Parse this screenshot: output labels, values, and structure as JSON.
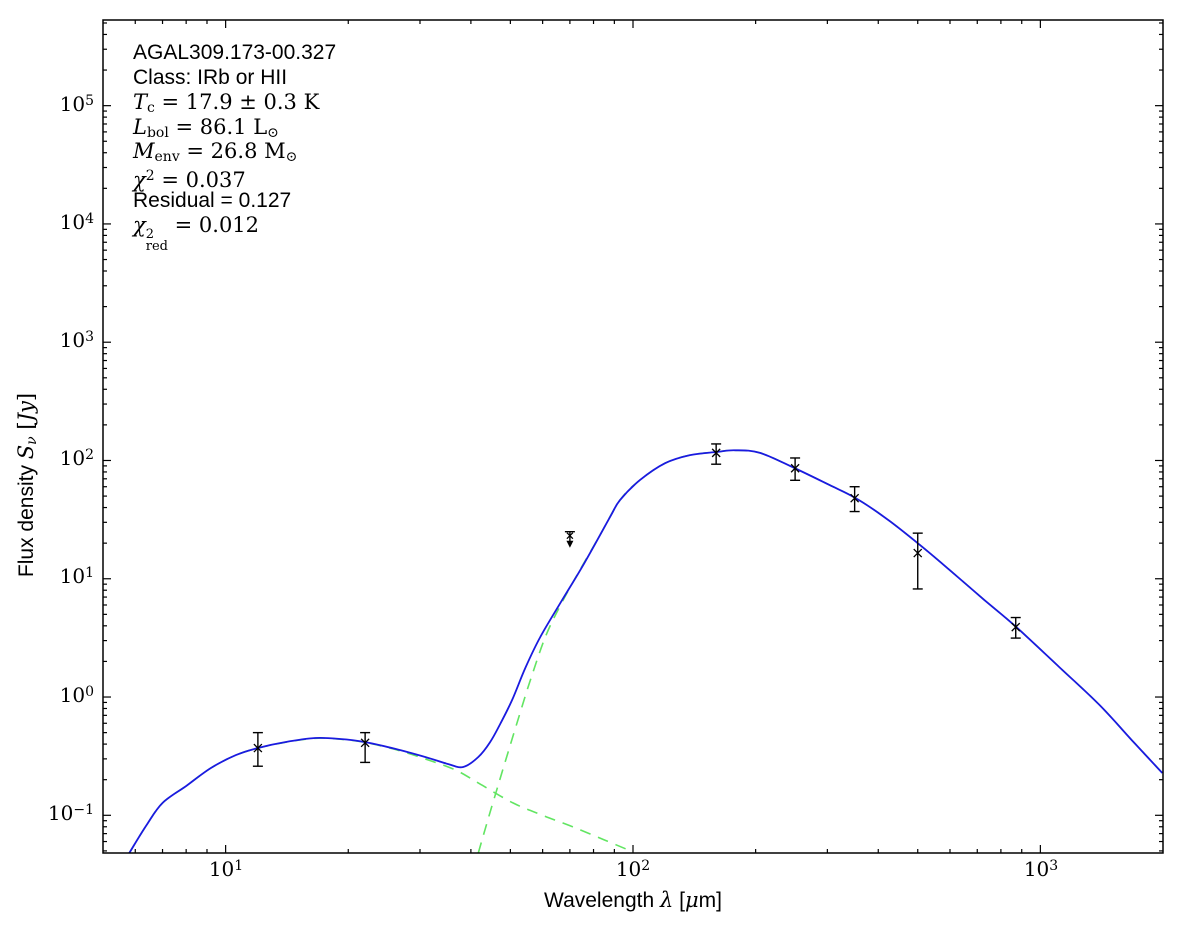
{
  "figure": {
    "background": "#ffffff",
    "frame_color": "#000000"
  },
  "annotation": {
    "lines": [
      {
        "name": "source-name",
        "parts": [
          {
            "t": "AGAL309.173-00.327",
            "s": "sans"
          }
        ]
      },
      {
        "name": "class",
        "parts": [
          {
            "t": "Class: IRb or HII",
            "s": "sans"
          }
        ]
      },
      {
        "name": "dust-temperature",
        "parts": [
          {
            "t": "T",
            "s": "it"
          },
          {
            "t": "c",
            "s": "sub"
          },
          {
            "t": " = 17.9 ± 0.3 K",
            "s": "rm"
          }
        ]
      },
      {
        "name": "bolometric-luminosity",
        "parts": [
          {
            "t": "L",
            "s": "it"
          },
          {
            "t": "bol",
            "s": "sub"
          },
          {
            "t": " = 86.1 L",
            "s": "rm"
          },
          {
            "t": "⊙",
            "s": "sub"
          }
        ]
      },
      {
        "name": "envelope-mass",
        "parts": [
          {
            "t": "M",
            "s": "it"
          },
          {
            "t": "env",
            "s": "sub"
          },
          {
            "t": " = 26.8 M",
            "s": "rm"
          },
          {
            "t": "⊙",
            "s": "sub"
          }
        ]
      },
      {
        "name": "chi-squared",
        "parts": [
          {
            "t": "χ",
            "s": "it"
          },
          {
            "t": "2",
            "s": "sup"
          },
          {
            "t": " = 0.037",
            "s": "rm"
          }
        ]
      },
      {
        "name": "residual",
        "parts": [
          {
            "t": "Residual = 0.127",
            "s": "sans"
          }
        ]
      },
      {
        "name": "chi-squared-reduced",
        "parts": [
          {
            "t": "χ",
            "s": "it"
          },
          {
            "sup": "2",
            "sub": "red",
            "s": "supsub"
          },
          {
            "t": " = 0.012",
            "s": "rm"
          }
        ]
      }
    ]
  },
  "chart_data": {
    "type": "line",
    "title": "",
    "xlabel": "Wavelength λ [μm]",
    "ylabel": "Flux density Sν [Jy]",
    "xscale": "log",
    "yscale": "log",
    "xlim": [
      5.0,
      2000
    ],
    "ylim": [
      0.048,
      530000
    ],
    "grid": false,
    "legend": "none",
    "colors": {
      "fit_total": "#1a1ae0",
      "components": "#62e562",
      "markers": "#000000",
      "frame": "#000000"
    },
    "xlabel_parts": [
      {
        "t": "Wavelength ",
        "s": "sans"
      },
      {
        "t": "λ",
        "s": "it"
      },
      {
        "t": " [",
        "s": "sans"
      },
      {
        "t": "μ",
        "s": "it"
      },
      {
        "t": "m]",
        "s": "sans"
      }
    ],
    "ylabel_parts": [
      {
        "t": "Flux density ",
        "s": "sans"
      },
      {
        "t": "S",
        "s": "it"
      },
      {
        "t": "ν",
        "s": "subit"
      },
      {
        "t": " [",
        "s": "rm"
      },
      {
        "t": "Jy",
        "s": "it"
      },
      {
        "t": "]",
        "s": "rm"
      }
    ],
    "x_ticks": [
      {
        "value": 10,
        "base": "10",
        "exp": "1"
      },
      {
        "value": 100,
        "base": "10",
        "exp": "2"
      },
      {
        "value": 1000,
        "base": "10",
        "exp": "3"
      }
    ],
    "y_ticks": [
      {
        "value": 100000,
        "base": "10",
        "exp": "5"
      },
      {
        "value": 10000,
        "base": "10",
        "exp": "4"
      },
      {
        "value": 1000,
        "base": "10",
        "exp": "3"
      },
      {
        "value": 100,
        "base": "10",
        "exp": "2"
      },
      {
        "value": 10,
        "base": "10",
        "exp": "1"
      },
      {
        "value": 1,
        "base": "10",
        "exp": "0"
      },
      {
        "value": 0.1,
        "base": "10",
        "exp": "−1"
      }
    ],
    "series": [
      {
        "name": "cold-component",
        "style": "dashed",
        "color": "#62e562",
        "points": [
          [
            41.7,
            0.048
          ],
          [
            44.9,
            0.115
          ],
          [
            48.3,
            0.266
          ],
          [
            52,
            0.615
          ],
          [
            56.2,
            1.45
          ],
          [
            61.2,
            3.34
          ],
          [
            67,
            6.35
          ],
          [
            74.1,
            11.9
          ],
          [
            83,
            23.4
          ],
          [
            92.9,
            46.2
          ],
          [
            104,
            68.2
          ],
          [
            120,
            95
          ],
          [
            138,
            111
          ],
          [
            160,
            118
          ],
          [
            178,
            122
          ],
          [
            205,
            116
          ],
          [
            249,
            86.3
          ],
          [
            304,
            61.9
          ],
          [
            352,
            48.1
          ],
          [
            414,
            33.2
          ],
          [
            500,
            20
          ],
          [
            598,
            11.9
          ],
          [
            729,
            6.6
          ],
          [
            873,
            3.9
          ],
          [
            1113,
            1.79
          ],
          [
            1395,
            0.86
          ],
          [
            1700,
            0.41
          ],
          [
            1992,
            0.228
          ]
        ]
      },
      {
        "name": "hot-component",
        "style": "dashed",
        "color": "#62e562",
        "points": [
          [
            5.8,
            0.048
          ],
          [
            6.4,
            0.083
          ],
          [
            7.0,
            0.127
          ],
          [
            8.0,
            0.177
          ],
          [
            9.2,
            0.251
          ],
          [
            10.6,
            0.323
          ],
          [
            12,
            0.37
          ],
          [
            14,
            0.414
          ],
          [
            16.6,
            0.448
          ],
          [
            19.1,
            0.44
          ],
          [
            22,
            0.413
          ],
          [
            26.1,
            0.36
          ],
          [
            30.9,
            0.3
          ],
          [
            36.6,
            0.242
          ],
          [
            42,
            0.185
          ],
          [
            50.8,
            0.127
          ],
          [
            60,
            0.1
          ],
          [
            71.3,
            0.0796
          ],
          [
            85,
            0.062
          ],
          [
            100,
            0.049
          ]
        ]
      },
      {
        "name": "total-fit",
        "style": "solid",
        "color": "#1a1ae0",
        "points": [
          [
            5.8,
            0.048
          ],
          [
            6.4,
            0.083
          ],
          [
            7.0,
            0.127
          ],
          [
            8.0,
            0.177
          ],
          [
            9.2,
            0.251
          ],
          [
            10.6,
            0.323
          ],
          [
            12,
            0.371
          ],
          [
            14,
            0.416
          ],
          [
            16.6,
            0.45
          ],
          [
            19.1,
            0.442
          ],
          [
            22,
            0.416
          ],
          [
            26.1,
            0.364
          ],
          [
            30.9,
            0.311
          ],
          [
            35.2,
            0.271
          ],
          [
            38.3,
            0.256
          ],
          [
            41.7,
            0.311
          ],
          [
            44.6,
            0.416
          ],
          [
            47.2,
            0.591
          ],
          [
            50.5,
            0.943
          ],
          [
            54.4,
            1.76
          ],
          [
            59.2,
            3.22
          ],
          [
            67,
            6.6
          ],
          [
            76.3,
            13.9
          ],
          [
            87.8,
            33.2
          ],
          [
            92.9,
            46.2
          ],
          [
            104,
            68.2
          ],
          [
            120,
            95
          ],
          [
            138,
            111
          ],
          [
            160,
            118
          ],
          [
            178,
            122
          ],
          [
            205,
            116
          ],
          [
            249,
            86.3
          ],
          [
            304,
            61.9
          ],
          [
            352,
            48.1
          ],
          [
            414,
            33.2
          ],
          [
            500,
            20
          ],
          [
            598,
            11.9
          ],
          [
            729,
            6.6
          ],
          [
            873,
            3.9
          ],
          [
            1113,
            1.79
          ],
          [
            1395,
            0.86
          ],
          [
            1700,
            0.41
          ],
          [
            1992,
            0.228
          ]
        ]
      }
    ],
    "data_points": [
      {
        "wavelength": 12,
        "flux": 0.37,
        "flux_lo": 0.26,
        "flux_hi": 0.5
      },
      {
        "wavelength": 22,
        "flux": 0.41,
        "flux_lo": 0.28,
        "flux_hi": 0.5
      },
      {
        "wavelength": 160,
        "flux": 116,
        "flux_lo": 93,
        "flux_hi": 138
      },
      {
        "wavelength": 250,
        "flux": 86,
        "flux_lo": 68,
        "flux_hi": 105
      },
      {
        "wavelength": 350,
        "flux": 48,
        "flux_lo": 37,
        "flux_hi": 60
      },
      {
        "wavelength": 500,
        "flux": 16.5,
        "flux_lo": 8.2,
        "flux_hi": 24.3
      },
      {
        "wavelength": 870,
        "flux": 3.9,
        "flux_lo": 3.15,
        "flux_hi": 4.7
      }
    ],
    "upper_limit": {
      "wavelength": 70,
      "flux": 25
    }
  }
}
